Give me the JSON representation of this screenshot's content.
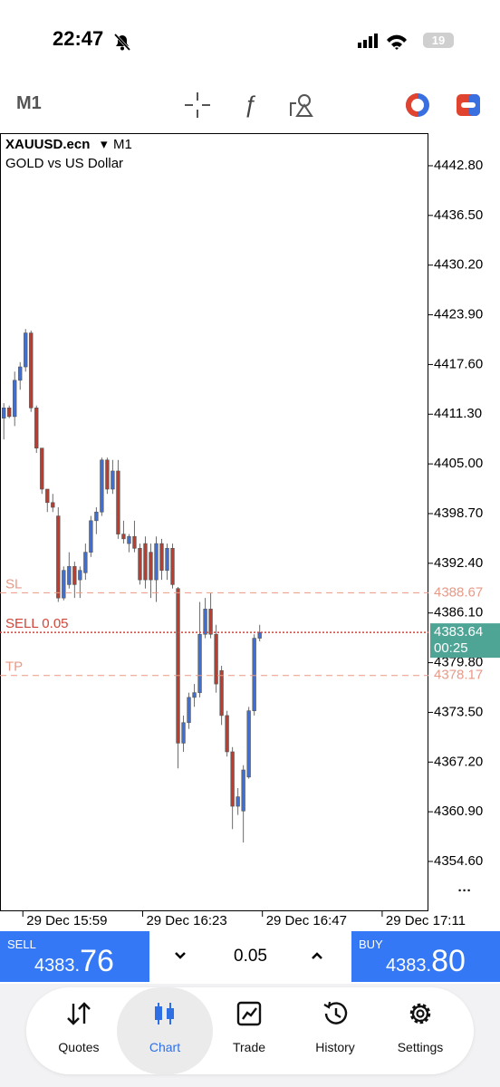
{
  "status_bar": {
    "time": "22:47",
    "battery": "19"
  },
  "toolbar": {
    "timeframe": "M1"
  },
  "chart_data": {
    "type": "candlestick",
    "symbol": "XAUUSD.ecn",
    "symbol_timeframe": "M1",
    "description": "GOLD vs US Dollar",
    "x": [
      0,
      1,
      2,
      3,
      4,
      5,
      6,
      7,
      8,
      9,
      10,
      11,
      12,
      13,
      14,
      15,
      16,
      17,
      18,
      19,
      20,
      21,
      22,
      23,
      24,
      25,
      26,
      27,
      28,
      29,
      30,
      31,
      32,
      33,
      34,
      35,
      36,
      37,
      38,
      39,
      40,
      41,
      42,
      43,
      44,
      45,
      46,
      47
    ],
    "open": [
      4410.8,
      4412.1,
      4411.0,
      4415.6,
      4417.3,
      4421.6,
      4412.1,
      4407.0,
      4401.8,
      4400.1,
      4398.4,
      4388.0,
      4389.7,
      4392.0,
      4390.3,
      4391.2,
      4393.8,
      4397.8,
      4398.9,
      4405.5,
      4401.8,
      4404.1,
      4396.1,
      4394.9,
      4395.8,
      4394.3,
      4394.9,
      4393.8,
      4390.3,
      4394.9,
      4391.5,
      4394.3,
      4389.2,
      4369.6,
      4372.2,
      4375.4,
      4376.0,
      4383.4,
      4386.6,
      4383.4,
      4378.8,
      4373.1,
      4368.5,
      4361.6,
      4361.0,
      4365.3,
      4373.7,
      4382.9
    ],
    "high": [
      4412.7,
      4412.4,
      4416.7,
      4417.9,
      4422.1,
      4421.9,
      4412.4,
      4407.0,
      4401.8,
      4401.2,
      4399.5,
      4392.0,
      4393.8,
      4392.6,
      4392.0,
      4394.9,
      4398.4,
      4399.5,
      4405.8,
      4405.8,
      4405.5,
      4405.5,
      4397.8,
      4396.1,
      4397.8,
      4394.9,
      4395.8,
      4394.9,
      4395.8,
      4395.5,
      4394.9,
      4394.9,
      4389.4,
      4373.1,
      4376.0,
      4377.1,
      4387.5,
      4388.0,
      4388.6,
      4384.6,
      4379.4,
      4373.7,
      4369.1,
      4363.9,
      4366.8,
      4374.2,
      4383.4,
      4384.6
    ],
    "low": [
      4408.1,
      4410.8,
      4409.8,
      4414.4,
      4416.7,
      4411.6,
      4406.4,
      4401.2,
      4398.9,
      4398.9,
      4387.5,
      4387.7,
      4389.2,
      4388.0,
      4388.0,
      4390.3,
      4393.2,
      4396.1,
      4398.4,
      4401.2,
      4401.2,
      4395.5,
      4394.9,
      4393.8,
      4393.8,
      4389.7,
      4389.2,
      4388.0,
      4387.5,
      4390.3,
      4390.3,
      4389.2,
      4366.4,
      4368.5,
      4371.4,
      4374.2,
      4375.4,
      4382.9,
      4382.9,
      4376.0,
      4371.9,
      4367.9,
      4358.7,
      4360.5,
      4357.0,
      4365.1,
      4373.1,
      4382.5
    ],
    "close": [
      4412.1,
      4411.0,
      4415.6,
      4417.3,
      4421.6,
      4412.1,
      4407.0,
      4401.8,
      4400.1,
      4399.5,
      4388.0,
      4391.5,
      4392.0,
      4389.7,
      4391.5,
      4393.8,
      4397.8,
      4398.9,
      4405.5,
      4401.8,
      4404.1,
      4396.1,
      4395.5,
      4395.8,
      4394.3,
      4390.3,
      4390.3,
      4390.3,
      4394.9,
      4391.5,
      4394.3,
      4389.7,
      4369.6,
      4372.2,
      4375.4,
      4376.0,
      4383.4,
      4386.6,
      4383.4,
      4377.1,
      4373.1,
      4368.5,
      4361.6,
      4362.8,
      4366.2,
      4373.7,
      4382.9,
      4383.64
    ],
    "up_color": "#3a6fe0",
    "down_color": "#c23a2c",
    "xlim": [
      -0.7,
      78
    ],
    "xticks": [
      {
        "value": 3.5,
        "label": "29 Dec 15:59"
      },
      {
        "value": 25.5,
        "label": "29 Dec 16:23"
      },
      {
        "value": 47.5,
        "label": "29 Dec 16:47"
      },
      {
        "value": 69.5,
        "label": "29 Dec 17:11"
      }
    ],
    "ylim": [
      4348.4,
      4446.93
    ],
    "yticks": [
      {
        "value": 4442.8,
        "label": "4442.80"
      },
      {
        "value": 4436.5,
        "label": "4436.50"
      },
      {
        "value": 4430.2,
        "label": "4430.20"
      },
      {
        "value": 4423.9,
        "label": "4423.90"
      },
      {
        "value": 4417.6,
        "label": "4417.60"
      },
      {
        "value": 4411.3,
        "label": "4411.30"
      },
      {
        "value": 4405.0,
        "label": "4405.00"
      },
      {
        "value": 4398.7,
        "label": "4398.70"
      },
      {
        "value": 4392.4,
        "label": "4392.40"
      },
      {
        "value": 4386.1,
        "label": "4386.10"
      },
      {
        "value": 4379.8,
        "label": "4379.80"
      },
      {
        "value": 4373.5,
        "label": "4373.50"
      },
      {
        "value": 4367.2,
        "label": "4367.20"
      },
      {
        "value": 4360.9,
        "label": "4360.90"
      },
      {
        "value": 4354.6,
        "label": "4354.60"
      }
    ],
    "levels": [
      {
        "name": "SL",
        "value": 4388.67,
        "color": "#e89a88",
        "style": "dashed"
      },
      {
        "name": "SELL 0.05",
        "value": 4383.64,
        "color": "#d0463a",
        "style": "dotted"
      },
      {
        "name": "TP",
        "value": 4378.17,
        "color": "#e89a88",
        "style": "dashed"
      }
    ],
    "current_price": 4383.64,
    "countdown": "00:25",
    "price_box_color": "#4ea596"
  },
  "trade_panel": {
    "sell": {
      "label": "SELL",
      "price_prefix": "4383.",
      "price_suffix": "76"
    },
    "lot": "0.05",
    "buy": {
      "label": "BUY",
      "price_prefix": "4383.",
      "price_suffix": "80"
    }
  },
  "nav": [
    "Quotes",
    "Chart",
    "Trade",
    "History",
    "Settings"
  ]
}
